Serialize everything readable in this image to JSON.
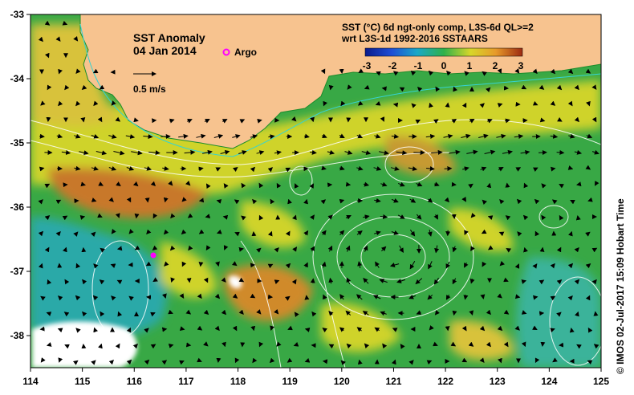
{
  "map": {
    "title": "SST Anomaly",
    "date": "04 Jan 2014",
    "argo_label": "Argo",
    "scale_label": "0.5 m/s",
    "product_line1": "SST (°C) 6d ngt-only comp, L3S-6d QL>=2",
    "product_line2": "wrt L3S-1d 1992-2016 SSTAARS",
    "credit": "© IMOS 02-Jul-2017 15:09 Hobart Time",
    "x_ticks": [
      "114",
      "115",
      "116",
      "117",
      "118",
      "119",
      "120",
      "121",
      "122",
      "123",
      "124",
      "125"
    ],
    "y_ticks": [
      "-33",
      "-34",
      "-35",
      "-36",
      "-37",
      "-38"
    ],
    "colorbar_ticks": [
      "-3",
      "-2",
      "-1",
      "0",
      "1",
      "2",
      "3"
    ],
    "colors": {
      "land": "#f7c38f",
      "argo": "#ff00ff",
      "anomaly_high": "#c0661a",
      "anomaly_mid": "#d9d827",
      "anomaly_zero": "#2fa63b",
      "anomaly_low": "#1ea3b2",
      "no_data": "#ffffff"
    },
    "layers": [
      "land",
      "sst-anomaly",
      "current-vectors",
      "sea-level-contours",
      "argo-float"
    ]
  }
}
